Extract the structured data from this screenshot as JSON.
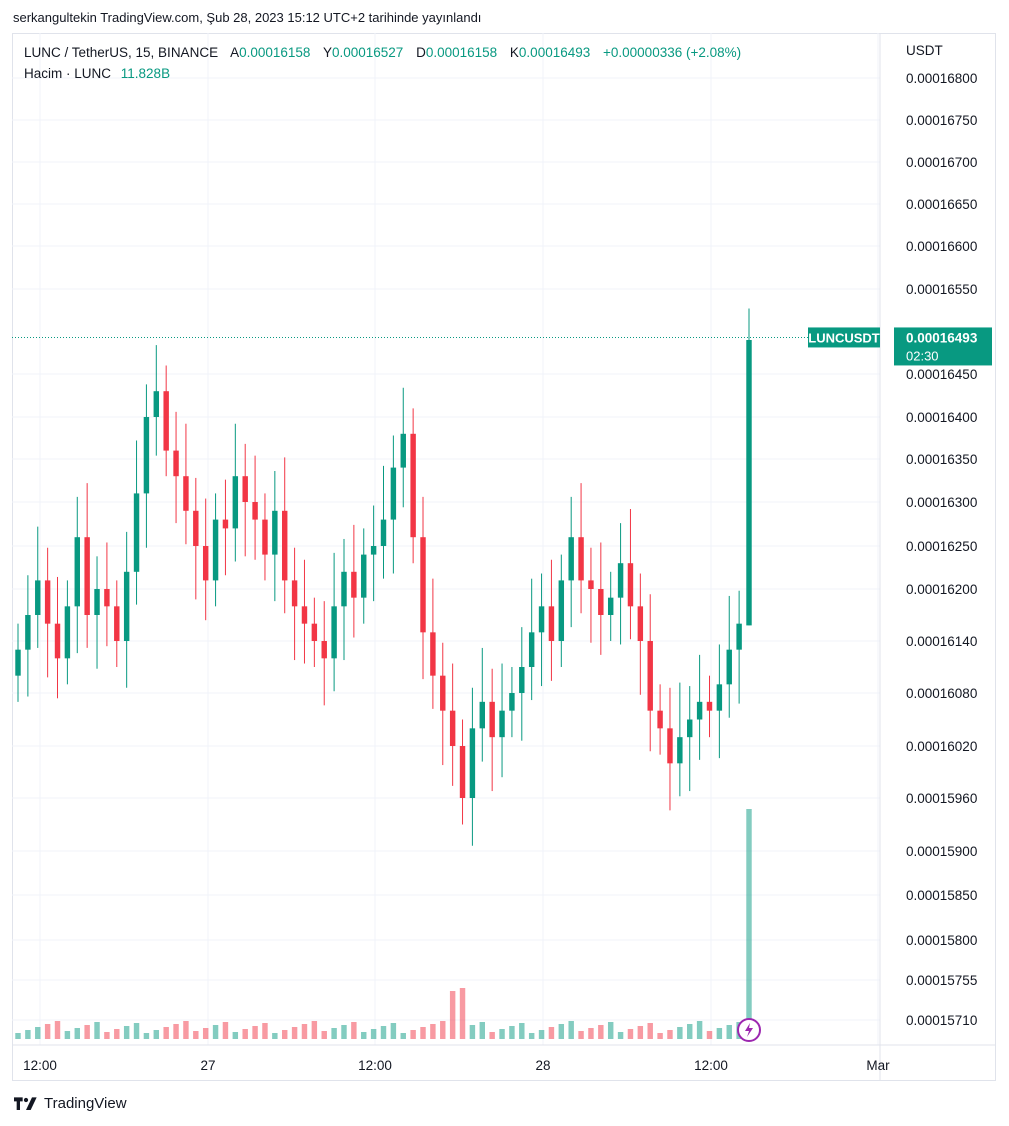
{
  "header": {
    "published_line": "serkangultekin TradingView.com, Şub 28, 2023 15:12 UTC+2 tarihinde yayınlandı"
  },
  "legend": {
    "symbol": "LUNC / TetherUS, 15, BINANCE",
    "open_label": "A",
    "open": "0.00016158",
    "high_label": "Y",
    "high": "0.00016527",
    "low_label": "D",
    "low": "0.00016158",
    "close_label": "K",
    "close": "0.00016493",
    "change": "+0.00000336 (+2.08%)",
    "volume_label": "Hacim · LUNC",
    "volume": "11.828B"
  },
  "price_axis": {
    "currency": "USDT",
    "ticks": [
      "0.00016800",
      "0.00016750",
      "0.00016700",
      "0.00016650",
      "0.00016600",
      "0.00016550",
      "0.00016450",
      "0.00016400",
      "0.00016350",
      "0.00016300",
      "0.00016250",
      "0.00016200",
      "0.00016140",
      "0.00016080",
      "0.00016020",
      "0.00015960",
      "0.00015900",
      "0.00015850",
      "0.00015800",
      "0.00015755",
      "0.00015710"
    ],
    "price_tag_symbol": "LUNCUSDT",
    "price_tag_value": "0.00016493",
    "countdown": "02:30"
  },
  "time_axis": {
    "ticks": [
      "12:00",
      "27",
      "12:00",
      "28",
      "12:00",
      "Mar"
    ]
  },
  "footer": {
    "brand": "TradingView"
  },
  "colors": {
    "up": "#089981",
    "down": "#f23645",
    "grid": "#f0f3fa",
    "axis_text": "#131722",
    "event_icon": "#9c27b0"
  },
  "chart_data": {
    "type": "candlestick",
    "title": "LUNC / TetherUS, 15, BINANCE",
    "ylabel": "USDT",
    "ylim": [
      0.000157,
      0.000168
    ],
    "log_scale": true,
    "x_ticks": [
      "12:00",
      "27",
      "12:00",
      "28",
      "12:00",
      "Mar"
    ],
    "last_price": 0.00016493,
    "last_candle": {
      "open": 0.00016158,
      "high": 0.00016527,
      "low": 0.00016158,
      "close": 0.00016493
    },
    "last_volume": "11.828B",
    "series": [
      {
        "name": "LUNCUSDT",
        "values": [
          0.0001613,
          0.0001617,
          0.0001621,
          0.0001616,
          0.0001612,
          0.0001618,
          0.0001626,
          0.0001617,
          0.000162,
          0.0001618,
          0.0001614,
          0.0001622,
          0.0001631,
          0.000164,
          0.0001643,
          0.0001636,
          0.0001633,
          0.0001629,
          0.0001625,
          0.0001621,
          0.0001628,
          0.0001627,
          0.0001633,
          0.000163,
          0.0001628,
          0.0001624,
          0.0001629,
          0.0001621,
          0.0001618,
          0.0001616,
          0.0001614,
          0.0001612,
          0.0001618,
          0.0001622,
          0.0001619,
          0.0001624,
          0.0001625,
          0.0001628,
          0.0001634,
          0.0001638,
          0.0001626,
          0.0001615,
          0.000161,
          0.0001606,
          0.0001602,
          0.0001596,
          0.0001604,
          0.0001607,
          0.0001603,
          0.0001606,
          0.0001608,
          0.0001611,
          0.0001615,
          0.0001618,
          0.0001614,
          0.0001621,
          0.0001626,
          0.0001621,
          0.000162,
          0.0001617,
          0.0001619,
          0.0001623,
          0.0001618,
          0.0001614,
          0.0001606,
          0.0001604,
          0.00016,
          0.0001603,
          0.0001605,
          0.0001607,
          0.0001606,
          0.0001609,
          0.0001613,
          0.0001616,
          0.0001649
        ]
      }
    ]
  }
}
